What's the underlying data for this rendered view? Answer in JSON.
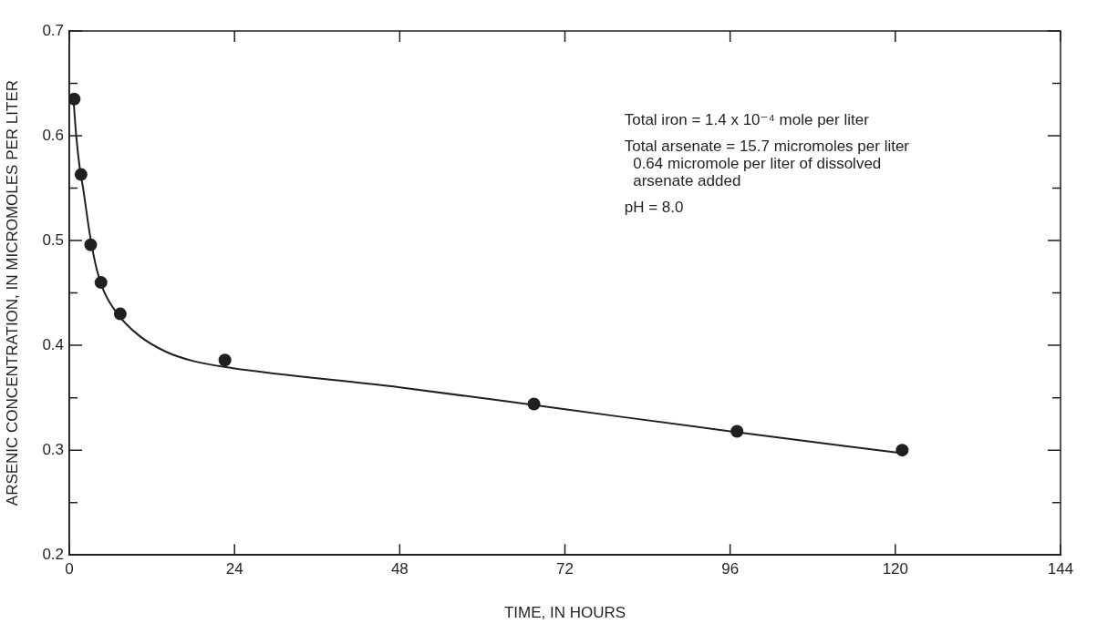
{
  "chart_data": {
    "type": "scatter",
    "xlabel": "TIME, IN HOURS",
    "ylabel": "ARSENIC CONCENTRATION, IN MICROMOLES PER LITER",
    "series": [
      {
        "color": "#231f20",
        "marker": "circle",
        "x": [
          0.7,
          1.7,
          3.1,
          4.6,
          7.4,
          22.6,
          67.5,
          97,
          121
        ],
        "values": [
          0.635,
          0.563,
          0.496,
          0.46,
          0.43,
          0.386,
          0.344,
          0.318,
          0.3
        ]
      },
      {
        "type": "line",
        "color": "#231f20",
        "marker": "none",
        "line_style": "solid",
        "x": [
          0.6,
          1,
          1.5,
          2,
          3,
          4,
          5,
          7,
          10,
          14,
          18,
          23,
          48,
          72,
          96,
          121
        ],
        "values": [
          0.635,
          0.6,
          0.57,
          0.55,
          0.505,
          0.472,
          0.452,
          0.43,
          0.41,
          0.394,
          0.385,
          0.379,
          0.36,
          0.339,
          0.318,
          0.297
        ]
      }
    ],
    "xlim": [
      0,
      144
    ],
    "xticks": [
      0,
      24,
      48,
      72,
      96,
      120,
      144
    ],
    "ylim": [
      0.2,
      0.7
    ],
    "yticks": [
      0.2,
      {
        "value": 0.25,
        "label": null
      },
      0.3,
      {
        "value": 0.35,
        "label": null
      },
      0.4,
      {
        "value": 0.45,
        "label": null
      },
      0.5,
      {
        "value": 0.55,
        "label": null
      },
      0.6,
      {
        "value": 0.65,
        "label": null
      },
      0.7
    ],
    "grid": false,
    "legend": false,
    "annotations": [
      "Total iron = 1.4 x 10⁻⁴ mole per liter",
      "Total arsenate = 15.7 micromoles per liter\n  0.64 micromole per liter of dissolved\n  arsenate added",
      "pH = 8.0"
    ]
  }
}
